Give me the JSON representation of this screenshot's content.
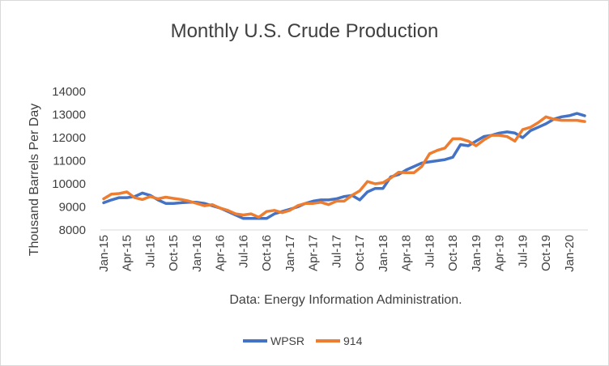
{
  "chart_data": {
    "type": "line",
    "title": "Monthly U.S. Crude Production",
    "ylabel": "Thousand Barrels Per Day",
    "xlabel": "Data: Energy Information Administration.",
    "ylim": [
      8000,
      14000
    ],
    "yticks": [
      8000,
      9000,
      10000,
      11000,
      12000,
      13000,
      14000
    ],
    "grid": false,
    "legend_position": "bottom",
    "x": [
      "Jan-15",
      "Feb-15",
      "Mar-15",
      "Apr-15",
      "May-15",
      "Jun-15",
      "Jul-15",
      "Aug-15",
      "Sep-15",
      "Oct-15",
      "Nov-15",
      "Dec-15",
      "Jan-16",
      "Feb-16",
      "Mar-16",
      "Apr-16",
      "May-16",
      "Jun-16",
      "Jul-16",
      "Aug-16",
      "Sep-16",
      "Oct-16",
      "Nov-16",
      "Dec-16",
      "Jan-17",
      "Feb-17",
      "Mar-17",
      "Apr-17",
      "May-17",
      "Jun-17",
      "Jul-17",
      "Aug-17",
      "Sep-17",
      "Oct-17",
      "Nov-17",
      "Dec-17",
      "Jan-18",
      "Feb-18",
      "Mar-18",
      "Apr-18",
      "May-18",
      "Jun-18",
      "Jul-18",
      "Aug-18",
      "Sep-18",
      "Oct-18",
      "Nov-18",
      "Dec-18",
      "Jan-19",
      "Feb-19",
      "Mar-19",
      "Apr-19",
      "May-19",
      "Jun-19",
      "Jul-19",
      "Aug-19",
      "Sep-19",
      "Oct-19",
      "Nov-19",
      "Dec-19",
      "Jan-20",
      "Feb-20",
      "Mar-20"
    ],
    "tick_labels": [
      "Jan-15",
      "Apr-15",
      "Jul-15",
      "Oct-15",
      "Jan-16",
      "Apr-16",
      "Jul-16",
      "Oct-16",
      "Jan-17",
      "Apr-17",
      "Jul-17",
      "Oct-17",
      "Jan-18",
      "Apr-18",
      "Jul-18",
      "Oct-18",
      "Jan-19",
      "Apr-19",
      "Jul-19",
      "Oct-19",
      "Jan-20"
    ],
    "series": [
      {
        "name": "WPSR",
        "color": "#4472c4",
        "values": [
          9180,
          9300,
          9400,
          9400,
          9450,
          9600,
          9500,
          9300,
          9150,
          9150,
          9180,
          9200,
          9200,
          9150,
          9050,
          8950,
          8800,
          8650,
          8500,
          8500,
          8500,
          8500,
          8700,
          8800,
          8900,
          9000,
          9150,
          9250,
          9300,
          9300,
          9350,
          9450,
          9500,
          9300,
          9650,
          9800,
          9800,
          10300,
          10400,
          10600,
          10750,
          10900,
          10950,
          11000,
          11050,
          11150,
          11700,
          11650,
          11850,
          12050,
          12100,
          12200,
          12250,
          12200,
          12000,
          12300,
          12450,
          12600,
          12800,
          12900,
          12950,
          13050,
          12950
        ]
      },
      {
        "name": "914",
        "color": "#ed7d31",
        "values": [
          9350,
          9550,
          9580,
          9650,
          9400,
          9320,
          9450,
          9350,
          9420,
          9370,
          9320,
          9250,
          9150,
          9050,
          9100,
          8950,
          8850,
          8700,
          8650,
          8700,
          8550,
          8800,
          8850,
          8750,
          8850,
          9050,
          9150,
          9150,
          9200,
          9100,
          9250,
          9250,
          9500,
          9700,
          10100,
          10000,
          10050,
          10250,
          10500,
          10480,
          10480,
          10750,
          11300,
          11450,
          11550,
          11950,
          11950,
          11850,
          11650,
          11900,
          12100,
          12100,
          12050,
          11850,
          12350,
          12450,
          12650,
          12900,
          12800,
          12750,
          12750,
          12750,
          12700
        ]
      }
    ]
  }
}
